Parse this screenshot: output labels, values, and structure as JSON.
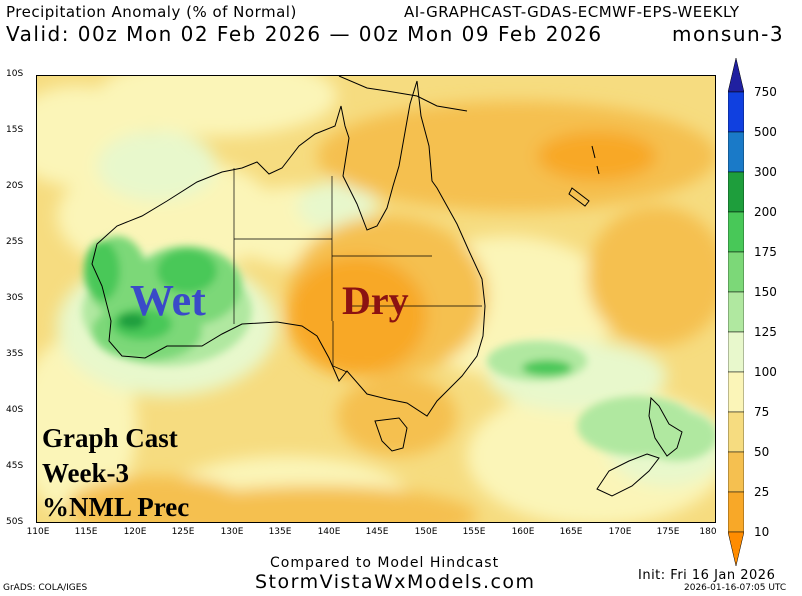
{
  "header": {
    "title": "Precipitation Anomaly (% of Normal)",
    "model": "AI-GRAPHCAST-GDAS-ECMWF-EPS-WEEKLY",
    "valid": "Valid: 00z Mon 02 Feb 2026 — 00z Mon 09 Feb 2026",
    "model_short": "monsun-3"
  },
  "map": {
    "lat_labels": [
      "10S",
      "15S",
      "20S",
      "25S",
      "30S",
      "35S",
      "40S",
      "45S",
      "50S"
    ],
    "lon_labels": [
      "110E",
      "115E",
      "120E",
      "125E",
      "130E",
      "135E",
      "140E",
      "145E",
      "150E",
      "155E",
      "160E",
      "165E",
      "170E",
      "175E",
      "180"
    ],
    "lat_range": [
      -50,
      -10
    ],
    "lon_range": [
      110,
      180
    ],
    "overlay": {
      "wet": "Wet",
      "dry": "Dry",
      "line1": "Graph Cast",
      "line2": "Week-3",
      "line3": "%NML Prec"
    },
    "overlay_colors": {
      "wet": "#3a4ac8",
      "dry": "#8b1212"
    }
  },
  "colorbar": {
    "levels": [
      "10",
      "25",
      "50",
      "75",
      "100",
      "125",
      "150",
      "175",
      "200",
      "300",
      "500",
      "750"
    ],
    "colors": [
      "#ff8c00",
      "#f8a828",
      "#f5c050",
      "#f6dc80",
      "#fbf5b8",
      "#e8f8cc",
      "#b0e8a0",
      "#7cd878",
      "#48c858",
      "#1e9e3c",
      "#1a7ac8",
      "#1040e0",
      "#2020a0"
    ]
  },
  "footer": {
    "compared": "Compared to Model Hindcast",
    "site": "StormVistaWxModels.com",
    "grads": "GrADS: COLA/IGES",
    "init": "Init: Fri 16 Jan 2026",
    "stamp": "2026-01-16-07:05 UTC"
  }
}
